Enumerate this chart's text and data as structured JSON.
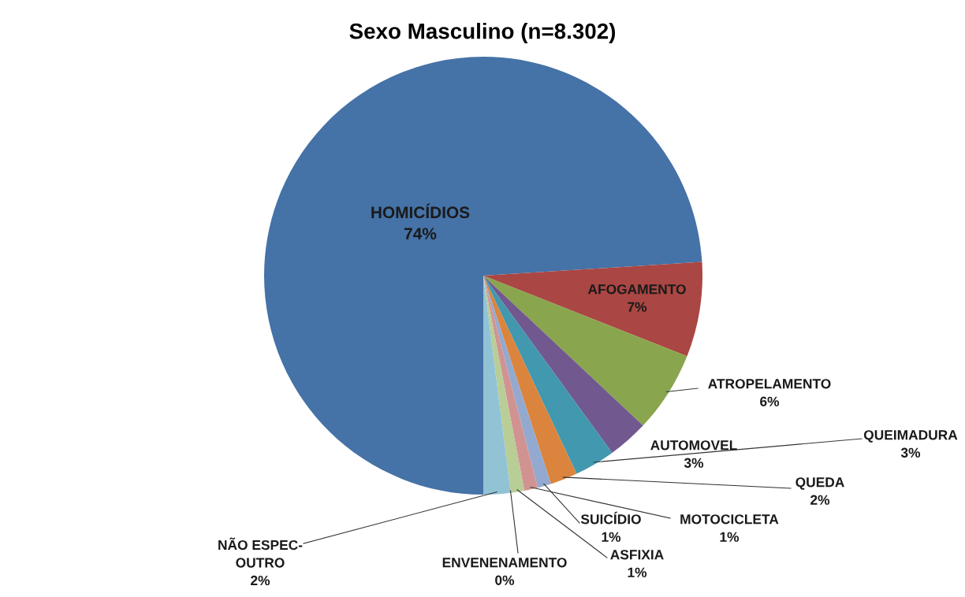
{
  "chart_data": {
    "type": "pie",
    "title": "Sexo Masculino (n=8.302)",
    "categories": [
      "HOMICÍDIOS",
      "AFOGAMENTO",
      "ATROPELAMENTO",
      "AUTOMOVEL",
      "QUEIMADURA",
      "QUEDA",
      "SUICÍDIO",
      "MOTOCICLETA",
      "ASFIXIA",
      "ENVENENAMENTO",
      "NÃO ESPEC-\nOUTRO"
    ],
    "values": [
      74,
      7,
      6,
      3,
      3,
      2,
      1,
      1,
      1,
      0,
      2
    ],
    "value_labels": [
      "74%",
      "7%",
      "6%",
      "3%",
      "3%",
      "2%",
      "1%",
      "1%",
      "1%",
      "0%",
      "2%"
    ],
    "colors": [
      "#4572a7",
      "#aa4643",
      "#89a54e",
      "#71588f",
      "#4198af",
      "#db843d",
      "#93a9cf",
      "#d19392",
      "#b9cd96",
      "#a99bbd",
      "#92c3d5"
    ]
  }
}
